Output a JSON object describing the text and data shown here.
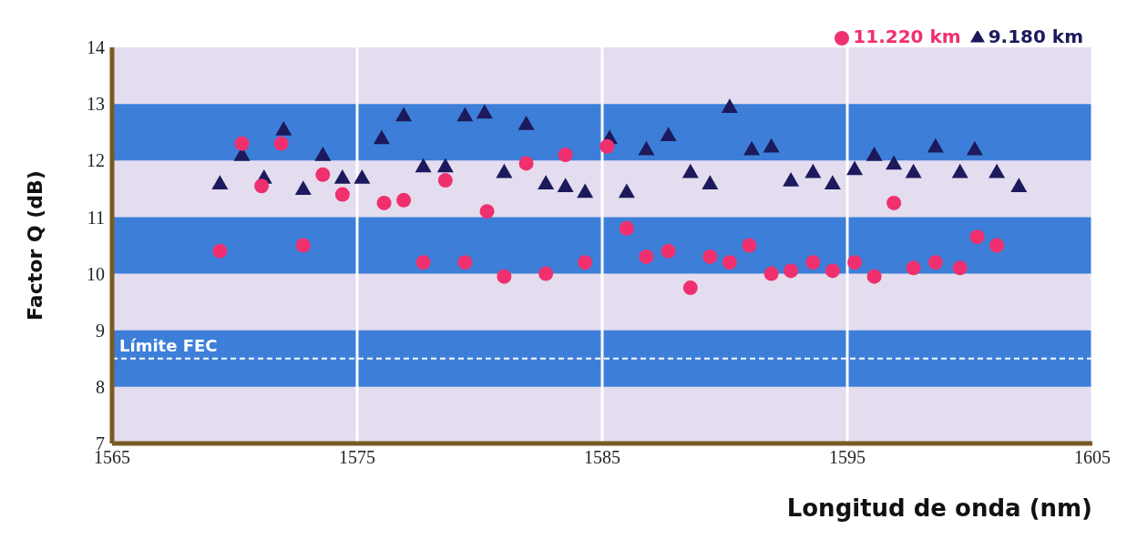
{
  "chart_data": {
    "type": "scatter",
    "xlabel": "Longitud de onda (nm)",
    "ylabel": "Factor Q (dB)",
    "xlim": [
      1565,
      1605
    ],
    "xticks": [
      1565,
      1575,
      1585,
      1595,
      1605
    ],
    "ylim": [
      7,
      14
    ],
    "yticks": [
      7,
      8,
      9,
      10,
      11,
      12,
      13,
      14
    ],
    "grid": "x",
    "legend": "top right",
    "bands": [
      {
        "axis": "y",
        "from": 12,
        "to": 13,
        "color": "#3d7fd8"
      },
      {
        "axis": "y",
        "from": 10,
        "to": 11,
        "color": "#3d7fd8"
      },
      {
        "axis": "y",
        "from": 8,
        "to": 9,
        "color": "#3d7fd8"
      }
    ],
    "ref_lines": [
      {
        "axis": "y",
        "value": 8.5,
        "label": "Límite FEC",
        "color": "#ffffff",
        "line_style": "dashed"
      }
    ],
    "series": [
      {
        "name": "9.180 km",
        "color": "#1c1a5c",
        "marker": "triangle",
        "x": [
          1569.4,
          1570.3,
          1571.2,
          1572.0,
          1572.8,
          1573.6,
          1574.4,
          1575.2,
          1576.0,
          1576.9,
          1577.7,
          1578.6,
          1579.4,
          1580.2,
          1581.0,
          1581.9,
          1582.7,
          1583.5,
          1584.3,
          1585.3,
          1586.0,
          1586.8,
          1587.7,
          1588.6,
          1589.4,
          1590.2,
          1591.1,
          1591.9,
          1592.7,
          1593.6,
          1594.4,
          1595.3,
          1596.1,
          1596.9,
          1597.7,
          1598.6,
          1599.6,
          1600.2,
          1601.1,
          1602.0
        ],
        "values": [
          11.6,
          12.1,
          11.7,
          12.55,
          11.5,
          12.1,
          11.7,
          11.7,
          12.4,
          12.8,
          11.9,
          11.9,
          12.8,
          12.85,
          11.8,
          12.65,
          11.6,
          11.55,
          11.45,
          12.4,
          11.45,
          12.2,
          12.45,
          11.8,
          11.6,
          12.95,
          12.2,
          12.25,
          11.65,
          11.8,
          11.6,
          11.85,
          12.1,
          11.95,
          11.8,
          12.25,
          11.8,
          12.2,
          11.8,
          11.55
        ]
      },
      {
        "name": "11.220 km",
        "color": "#f0306e",
        "marker": "circle",
        "x": [
          1569.4,
          1570.3,
          1571.1,
          1571.9,
          1572.8,
          1573.6,
          1574.4,
          1576.1,
          1576.9,
          1577.7,
          1578.6,
          1579.4,
          1580.3,
          1581.0,
          1581.9,
          1582.7,
          1583.5,
          1584.3,
          1585.2,
          1586.0,
          1586.8,
          1587.7,
          1588.6,
          1589.4,
          1590.2,
          1591.0,
          1591.9,
          1592.7,
          1593.6,
          1594.4,
          1595.3,
          1596.1,
          1596.9,
          1597.7,
          1598.6,
          1599.6,
          1600.3,
          1601.1
        ],
        "values": [
          10.4,
          12.3,
          11.55,
          12.3,
          10.5,
          11.75,
          11.4,
          11.25,
          11.3,
          10.2,
          11.65,
          10.2,
          11.1,
          9.95,
          11.95,
          10.0,
          12.1,
          10.2,
          12.25,
          10.8,
          10.3,
          10.4,
          9.75,
          10.3,
          10.2,
          10.5,
          10.0,
          10.05,
          10.2,
          10.05,
          10.2,
          9.95,
          11.25,
          10.1,
          10.2,
          10.1,
          10.65,
          10.5
        ]
      }
    ]
  }
}
